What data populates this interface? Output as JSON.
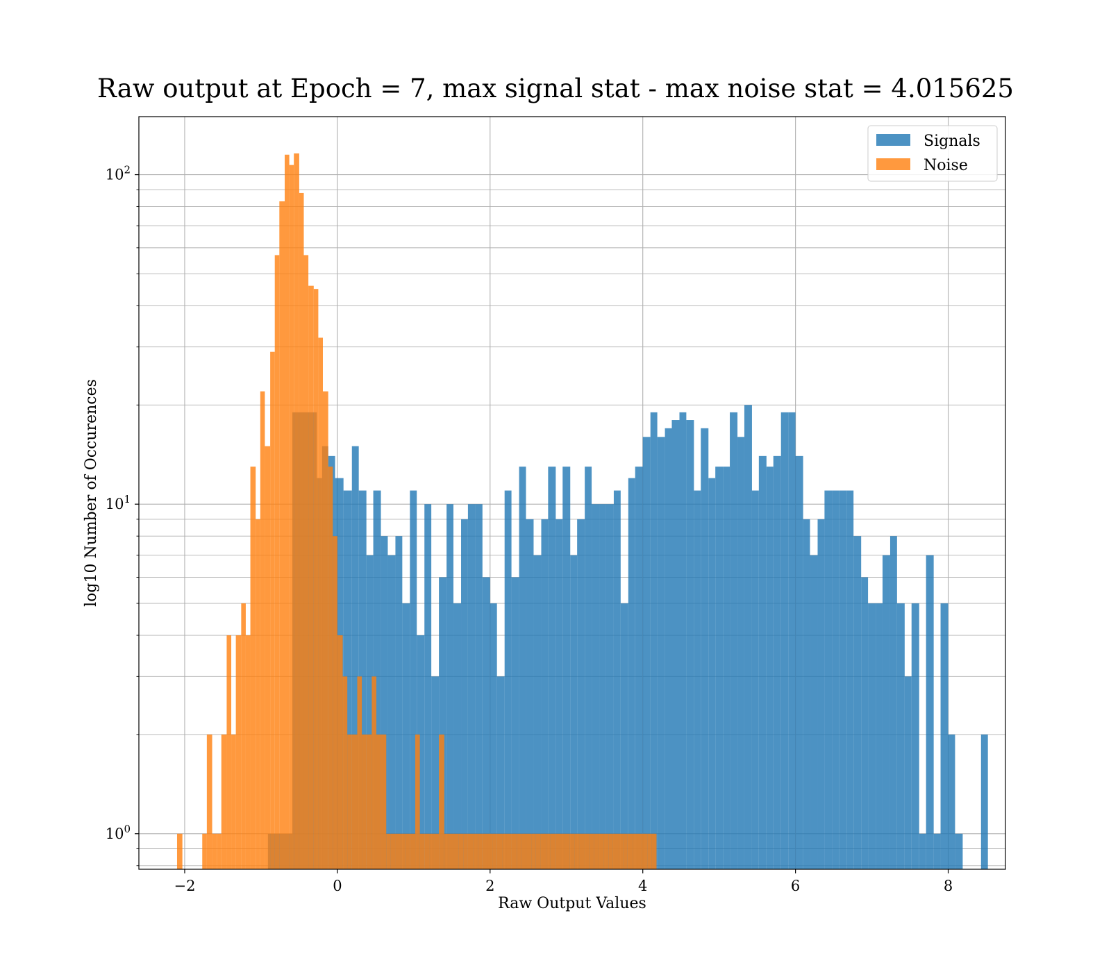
{
  "chart_data": {
    "type": "bar",
    "subtype": "histogram",
    "title": "Raw output at Epoch = 7, max signal stat - max noise stat = 4.015625",
    "xlabel": "Raw Output Values",
    "ylabel": "log10 Number of Occurences",
    "yscale": "log",
    "xlim": [
      -2.6,
      8.75
    ],
    "ylim": [
      0.78,
      150
    ],
    "x_ticks": [
      -2,
      0,
      2,
      4,
      6,
      8
    ],
    "x_tick_labels": [
      "−2",
      "0",
      "2",
      "4",
      "6",
      "8"
    ],
    "y_ticks": [
      1,
      10,
      100
    ],
    "y_tick_bases": [
      "10",
      "10",
      "10"
    ],
    "y_tick_exponents": [
      "0",
      "1",
      "2"
    ],
    "grid": true,
    "legend_position": "top-right",
    "series": [
      {
        "name": "Signals",
        "color": "#1f77b4",
        "bins": [
          [
            -0.91,
            -0.59,
            1
          ],
          [
            -0.59,
            -0.27,
            19
          ],
          [
            -0.27,
            -0.2,
            12
          ],
          [
            -0.2,
            -0.12,
            15
          ],
          [
            -0.12,
            -0.03,
            14
          ],
          [
            -0.03,
            0.08,
            12
          ],
          [
            0.08,
            0.19,
            11
          ],
          [
            0.19,
            0.28,
            15
          ],
          [
            0.28,
            0.38,
            11
          ],
          [
            0.38,
            0.47,
            7
          ],
          [
            0.47,
            0.57,
            11
          ],
          [
            0.57,
            0.66,
            8
          ],
          [
            0.66,
            0.76,
            7
          ],
          [
            0.76,
            0.85,
            8
          ],
          [
            0.85,
            0.95,
            5
          ],
          [
            0.95,
            1.04,
            11
          ],
          [
            1.04,
            1.14,
            4
          ],
          [
            1.14,
            1.23,
            10
          ],
          [
            1.23,
            1.33,
            3
          ],
          [
            1.33,
            1.43,
            6
          ],
          [
            1.43,
            1.52,
            10
          ],
          [
            1.52,
            1.62,
            5
          ],
          [
            1.62,
            1.71,
            9
          ],
          [
            1.71,
            1.81,
            10
          ],
          [
            1.81,
            1.9,
            10
          ],
          [
            1.9,
            2.0,
            6
          ],
          [
            2.0,
            2.09,
            5
          ],
          [
            2.09,
            2.19,
            3
          ],
          [
            2.19,
            2.28,
            11
          ],
          [
            2.28,
            2.38,
            6
          ],
          [
            2.38,
            2.47,
            13
          ],
          [
            2.47,
            2.57,
            9
          ],
          [
            2.57,
            2.67,
            7
          ],
          [
            2.67,
            2.76,
            9
          ],
          [
            2.76,
            2.86,
            13
          ],
          [
            2.86,
            2.95,
            9
          ],
          [
            2.95,
            3.05,
            13
          ],
          [
            3.05,
            3.14,
            7
          ],
          [
            3.14,
            3.24,
            9
          ],
          [
            3.24,
            3.33,
            13
          ],
          [
            3.33,
            3.43,
            10
          ],
          [
            3.43,
            3.52,
            10
          ],
          [
            3.52,
            3.62,
            10
          ],
          [
            3.62,
            3.71,
            11
          ],
          [
            3.71,
            3.81,
            5
          ],
          [
            3.81,
            3.9,
            12
          ],
          [
            3.9,
            4.0,
            13
          ],
          [
            4.0,
            4.1,
            16
          ],
          [
            4.1,
            4.19,
            19
          ],
          [
            4.19,
            4.29,
            16
          ],
          [
            4.29,
            4.38,
            17
          ],
          [
            4.38,
            4.48,
            18
          ],
          [
            4.48,
            4.57,
            19
          ],
          [
            4.57,
            4.67,
            18
          ],
          [
            4.67,
            4.76,
            11
          ],
          [
            4.76,
            4.86,
            17
          ],
          [
            4.86,
            4.95,
            12
          ],
          [
            4.95,
            5.05,
            13
          ],
          [
            5.05,
            5.14,
            13
          ],
          [
            5.14,
            5.24,
            19
          ],
          [
            5.24,
            5.33,
            16
          ],
          [
            5.33,
            5.43,
            20
          ],
          [
            5.43,
            5.52,
            11
          ],
          [
            5.52,
            5.62,
            14
          ],
          [
            5.62,
            5.71,
            13
          ],
          [
            5.71,
            5.81,
            14
          ],
          [
            5.81,
            5.91,
            19
          ],
          [
            5.91,
            6.0,
            19
          ],
          [
            6.0,
            6.1,
            14
          ],
          [
            6.1,
            6.19,
            9
          ],
          [
            6.19,
            6.29,
            7
          ],
          [
            6.29,
            6.38,
            9
          ],
          [
            6.38,
            6.48,
            11
          ],
          [
            6.48,
            6.57,
            11
          ],
          [
            6.57,
            6.67,
            11
          ],
          [
            6.67,
            6.76,
            11
          ],
          [
            6.76,
            6.86,
            8
          ],
          [
            6.86,
            6.95,
            6
          ],
          [
            6.95,
            7.05,
            5
          ],
          [
            7.05,
            7.14,
            5
          ],
          [
            7.14,
            7.24,
            7
          ],
          [
            7.24,
            7.33,
            8
          ],
          [
            7.33,
            7.43,
            5
          ],
          [
            7.43,
            7.52,
            3
          ],
          [
            7.52,
            7.62,
            5
          ],
          [
            7.62,
            7.71,
            1
          ],
          [
            7.71,
            7.81,
            7
          ],
          [
            7.81,
            7.9,
            1
          ],
          [
            7.9,
            8.0,
            5
          ],
          [
            8.0,
            8.09,
            2
          ],
          [
            8.09,
            8.19,
            1
          ],
          [
            8.43,
            8.52,
            2
          ]
        ]
      },
      {
        "name": "Noise",
        "color": "#ff7f0e",
        "bins": [
          [
            -2.1,
            -2.03,
            1
          ],
          [
            -1.77,
            -1.71,
            1
          ],
          [
            -1.71,
            -1.64,
            2
          ],
          [
            -1.64,
            -1.58,
            1
          ],
          [
            -1.58,
            -1.52,
            1
          ],
          [
            -1.52,
            -1.45,
            2
          ],
          [
            -1.45,
            -1.39,
            4
          ],
          [
            -1.39,
            -1.33,
            2
          ],
          [
            -1.33,
            -1.26,
            4
          ],
          [
            -1.26,
            -1.2,
            5
          ],
          [
            -1.2,
            -1.14,
            4
          ],
          [
            -1.14,
            -1.07,
            13
          ],
          [
            -1.07,
            -1.01,
            9
          ],
          [
            -1.01,
            -0.95,
            22
          ],
          [
            -0.95,
            -0.88,
            15
          ],
          [
            -0.88,
            -0.82,
            29
          ],
          [
            -0.82,
            -0.76,
            57
          ],
          [
            -0.76,
            -0.69,
            83
          ],
          [
            -0.69,
            -0.63,
            115
          ],
          [
            -0.63,
            -0.57,
            107
          ],
          [
            -0.57,
            -0.5,
            116
          ],
          [
            -0.5,
            -0.44,
            88
          ],
          [
            -0.44,
            -0.38,
            57
          ],
          [
            -0.38,
            -0.31,
            46
          ],
          [
            -0.31,
            -0.25,
            45
          ],
          [
            -0.25,
            -0.19,
            32
          ],
          [
            -0.19,
            -0.12,
            22
          ],
          [
            -0.12,
            -0.06,
            13
          ],
          [
            -0.06,
            0.0,
            8
          ],
          [
            0.0,
            0.07,
            4
          ],
          [
            0.07,
            0.13,
            3
          ],
          [
            0.13,
            0.19,
            2
          ],
          [
            0.19,
            0.26,
            2
          ],
          [
            0.26,
            0.32,
            3
          ],
          [
            0.32,
            0.38,
            2
          ],
          [
            0.38,
            0.45,
            2
          ],
          [
            0.45,
            0.51,
            3
          ],
          [
            0.51,
            0.57,
            2
          ],
          [
            0.57,
            0.64,
            2
          ],
          [
            0.64,
            0.7,
            1
          ],
          [
            0.7,
            0.76,
            1
          ],
          [
            0.76,
            0.83,
            1
          ],
          [
            0.83,
            0.89,
            1
          ],
          [
            0.89,
            0.95,
            1
          ],
          [
            0.95,
            1.02,
            1
          ],
          [
            1.02,
            1.08,
            2
          ],
          [
            1.08,
            1.14,
            1
          ],
          [
            1.14,
            1.21,
            1
          ],
          [
            1.21,
            1.27,
            1
          ],
          [
            1.27,
            1.33,
            1
          ],
          [
            1.33,
            1.4,
            2
          ],
          [
            1.4,
            1.46,
            1
          ],
          [
            1.46,
            1.52,
            1
          ],
          [
            1.52,
            1.59,
            1
          ],
          [
            1.59,
            1.65,
            1
          ],
          [
            1.65,
            1.71,
            1
          ],
          [
            1.71,
            1.78,
            1
          ],
          [
            1.78,
            1.84,
            1
          ],
          [
            1.84,
            1.9,
            1
          ],
          [
            1.9,
            1.97,
            1
          ],
          [
            1.97,
            2.03,
            1
          ],
          [
            2.03,
            2.09,
            1
          ],
          [
            2.09,
            2.16,
            1
          ],
          [
            2.16,
            2.22,
            1
          ],
          [
            2.22,
            2.28,
            1
          ],
          [
            2.28,
            2.35,
            1
          ],
          [
            2.35,
            2.41,
            1
          ],
          [
            2.41,
            2.47,
            1
          ],
          [
            2.47,
            2.54,
            1
          ],
          [
            2.54,
            2.6,
            1
          ],
          [
            2.6,
            2.66,
            1
          ],
          [
            2.66,
            2.73,
            1
          ],
          [
            2.73,
            2.79,
            1
          ],
          [
            2.79,
            2.85,
            1
          ],
          [
            2.85,
            2.92,
            1
          ],
          [
            2.92,
            2.98,
            1
          ],
          [
            2.98,
            3.04,
            1
          ],
          [
            3.04,
            3.11,
            1
          ],
          [
            3.11,
            3.17,
            1
          ],
          [
            3.17,
            3.23,
            1
          ],
          [
            3.23,
            3.3,
            1
          ],
          [
            3.3,
            3.36,
            1
          ],
          [
            3.36,
            3.42,
            1
          ],
          [
            3.42,
            3.49,
            1
          ],
          [
            3.49,
            3.55,
            1
          ],
          [
            3.55,
            3.61,
            1
          ],
          [
            3.61,
            3.68,
            1
          ],
          [
            3.68,
            3.74,
            1
          ],
          [
            3.74,
            3.8,
            1
          ],
          [
            3.8,
            3.87,
            1
          ],
          [
            3.87,
            3.93,
            1
          ],
          [
            3.93,
            3.99,
            1
          ],
          [
            3.99,
            4.06,
            1
          ],
          [
            4.06,
            4.12,
            1
          ],
          [
            4.12,
            4.18,
            1
          ]
        ]
      }
    ]
  }
}
